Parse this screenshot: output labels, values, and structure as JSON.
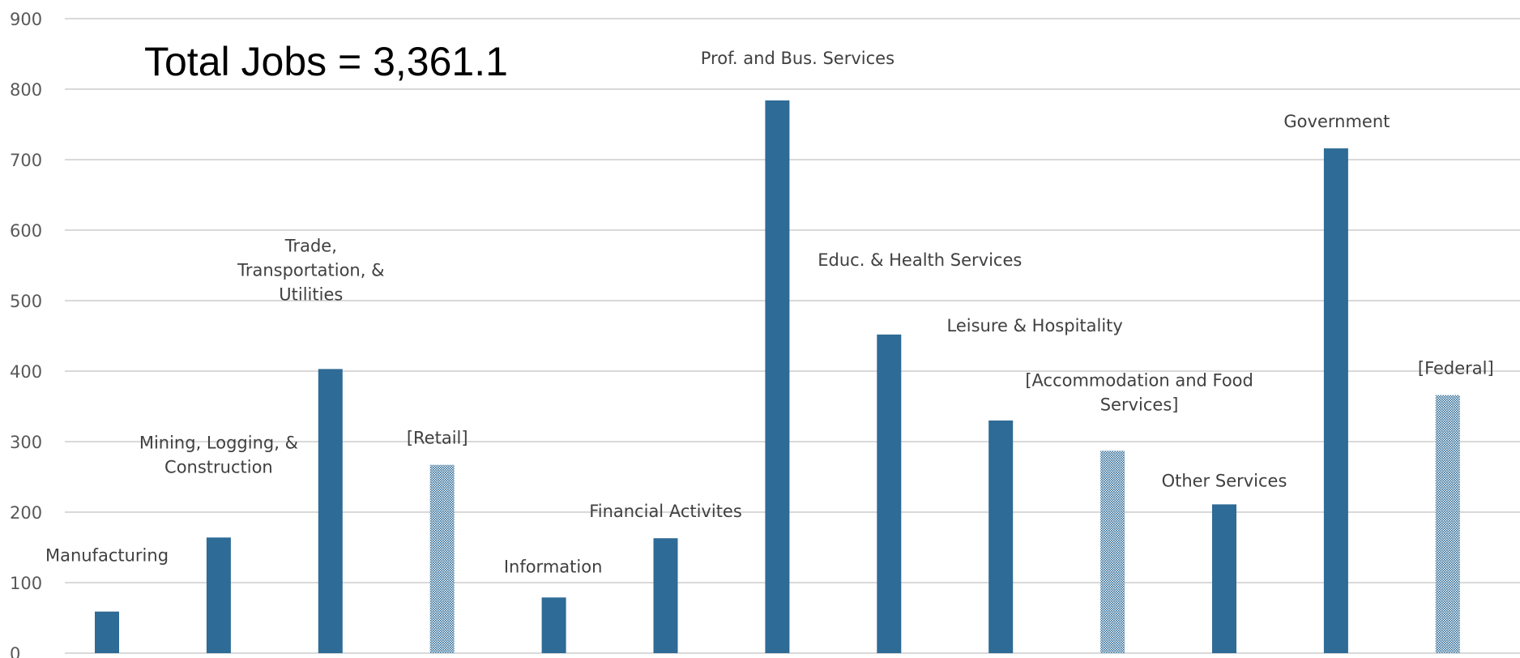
{
  "chart_data": {
    "type": "bar",
    "title": "",
    "xlabel": "",
    "ylabel": "",
    "ylim": [
      0,
      900
    ],
    "yticks": [
      0,
      100,
      200,
      300,
      400,
      500,
      600,
      700,
      800,
      900
    ],
    "grid": true,
    "legend": "none",
    "annotation": "Total Jobs = 3,361.1",
    "categories": [
      {
        "label": "Manufacturing",
        "value": 59,
        "pattern": "solid"
      },
      {
        "label": "Mining, Logging, & Construction",
        "value": 164,
        "pattern": "solid"
      },
      {
        "label": "Trade, Transportation, & Utilities",
        "value": 403,
        "pattern": "solid"
      },
      {
        "label": "[Retail]",
        "value": 267,
        "pattern": "dotted"
      },
      {
        "label": "Information",
        "value": 79,
        "pattern": "solid"
      },
      {
        "label": "Financial Activites",
        "value": 163,
        "pattern": "solid"
      },
      {
        "label": "Prof. and Bus. Services",
        "value": 784,
        "pattern": "solid"
      },
      {
        "label": "Educ. & Health Services",
        "value": 452,
        "pattern": "solid"
      },
      {
        "label": "Leisure & Hospitality",
        "value": 330,
        "pattern": "solid"
      },
      {
        "label": "[Accommodation and Food Services]",
        "value": 287,
        "pattern": "dotted"
      },
      {
        "label": "Other Services",
        "value": 211,
        "pattern": "solid"
      },
      {
        "label": "Government",
        "value": 716,
        "pattern": "solid"
      },
      {
        "label": "[Federal]",
        "value": 366,
        "pattern": "dotted"
      }
    ],
    "colors": {
      "bar": "#2e6b96",
      "grid": "#d9d9d9",
      "tick_text": "#595959",
      "label_text": "#404040"
    }
  }
}
